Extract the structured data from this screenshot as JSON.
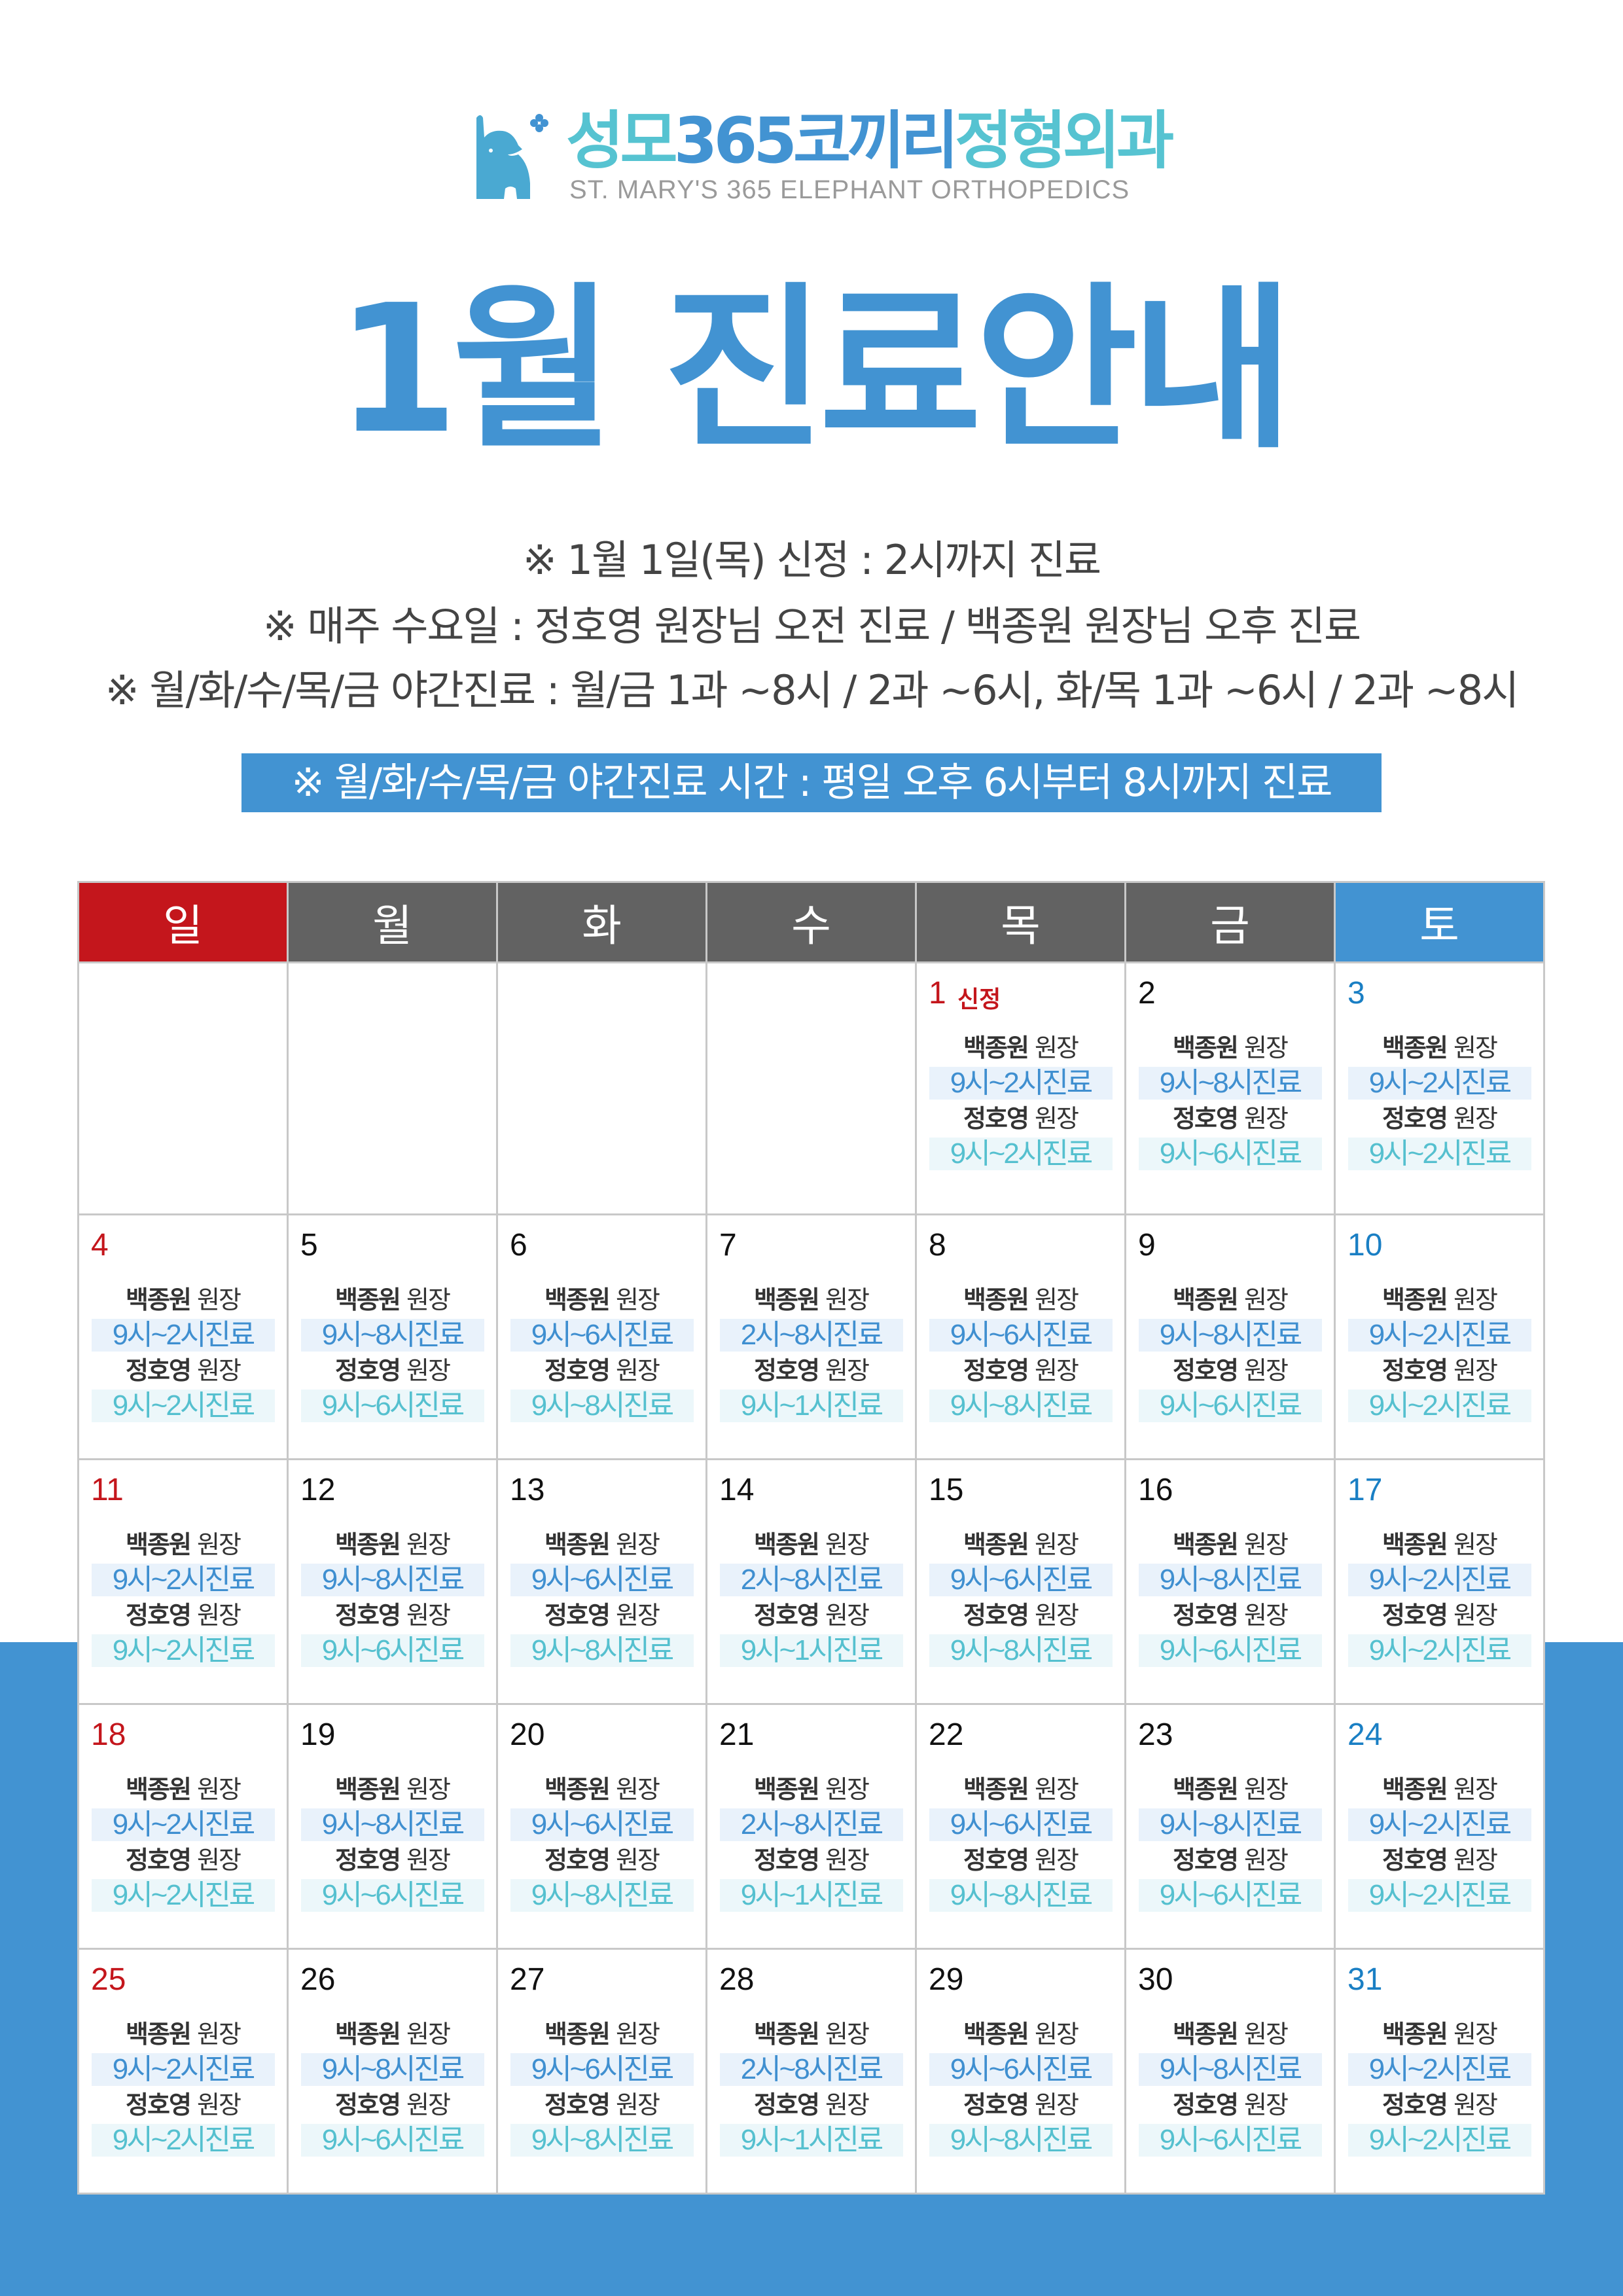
{
  "logo": {
    "name_ko_1": "성모",
    "name_ko_2": "365코끼리",
    "name_ko_3": "정형외과",
    "name_en": "ST. MARY'S 365 ELEPHANT ORTHOPEDICS"
  },
  "title": "1월 진료안내",
  "notes": [
    "※ 1월 1일(목) 신정 : 2시까지 진료",
    "※ 매주 수요일 : 정호영 원장님 오전 진료 / 백종원 원장님 오후 진료",
    "※ 월/화/수/목/금 야간진료 : 월/금 1과 ~8시 / 2과 ~6시,  화/목 1과 ~6시 / 2과 ~8시"
  ],
  "banner": "※ 월/화/수/목/금 야간진료 시간 : 평일 오후 6시부터 8시까지 진료",
  "colors": {
    "accent": "#4293d2",
    "sunday": "#c4161c",
    "header_gray": "#626262",
    "teal": "#56c3d1"
  },
  "calendar": {
    "weekdays": [
      "일",
      "월",
      "화",
      "수",
      "목",
      "금",
      "토"
    ],
    "doctor_suffix": "원장",
    "weeks": [
      [
        null,
        null,
        null,
        null,
        {
          "day": "1",
          "label": "신정",
          "docs": [
            [
              "백종원",
              "9시~2시진료"
            ],
            [
              "정호영",
              "9시~2시진료"
            ]
          ]
        },
        {
          "day": "2",
          "docs": [
            [
              "백종원",
              "9시~8시진료"
            ],
            [
              "정호영",
              "9시~6시진료"
            ]
          ]
        },
        {
          "day": "3",
          "docs": [
            [
              "백종원",
              "9시~2시진료"
            ],
            [
              "정호영",
              "9시~2시진료"
            ]
          ]
        }
      ],
      [
        {
          "day": "4",
          "docs": [
            [
              "백종원",
              "9시~2시진료"
            ],
            [
              "정호영",
              "9시~2시진료"
            ]
          ]
        },
        {
          "day": "5",
          "docs": [
            [
              "백종원",
              "9시~8시진료"
            ],
            [
              "정호영",
              "9시~6시진료"
            ]
          ]
        },
        {
          "day": "6",
          "docs": [
            [
              "백종원",
              "9시~6시진료"
            ],
            [
              "정호영",
              "9시~8시진료"
            ]
          ]
        },
        {
          "day": "7",
          "docs": [
            [
              "백종원",
              "2시~8시진료"
            ],
            [
              "정호영",
              "9시~1시진료"
            ]
          ]
        },
        {
          "day": "8",
          "docs": [
            [
              "백종원",
              "9시~6시진료"
            ],
            [
              "정호영",
              "9시~8시진료"
            ]
          ]
        },
        {
          "day": "9",
          "docs": [
            [
              "백종원",
              "9시~8시진료"
            ],
            [
              "정호영",
              "9시~6시진료"
            ]
          ]
        },
        {
          "day": "10",
          "docs": [
            [
              "백종원",
              "9시~2시진료"
            ],
            [
              "정호영",
              "9시~2시진료"
            ]
          ]
        }
      ],
      [
        {
          "day": "11",
          "docs": [
            [
              "백종원",
              "9시~2시진료"
            ],
            [
              "정호영",
              "9시~2시진료"
            ]
          ]
        },
        {
          "day": "12",
          "docs": [
            [
              "백종원",
              "9시~8시진료"
            ],
            [
              "정호영",
              "9시~6시진료"
            ]
          ]
        },
        {
          "day": "13",
          "docs": [
            [
              "백종원",
              "9시~6시진료"
            ],
            [
              "정호영",
              "9시~8시진료"
            ]
          ]
        },
        {
          "day": "14",
          "docs": [
            [
              "백종원",
              "2시~8시진료"
            ],
            [
              "정호영",
              "9시~1시진료"
            ]
          ]
        },
        {
          "day": "15",
          "docs": [
            [
              "백종원",
              "9시~6시진료"
            ],
            [
              "정호영",
              "9시~8시진료"
            ]
          ]
        },
        {
          "day": "16",
          "docs": [
            [
              "백종원",
              "9시~8시진료"
            ],
            [
              "정호영",
              "9시~6시진료"
            ]
          ]
        },
        {
          "day": "17",
          "docs": [
            [
              "백종원",
              "9시~2시진료"
            ],
            [
              "정호영",
              "9시~2시진료"
            ]
          ]
        }
      ],
      [
        {
          "day": "18",
          "docs": [
            [
              "백종원",
              "9시~2시진료"
            ],
            [
              "정호영",
              "9시~2시진료"
            ]
          ]
        },
        {
          "day": "19",
          "docs": [
            [
              "백종원",
              "9시~8시진료"
            ],
            [
              "정호영",
              "9시~6시진료"
            ]
          ]
        },
        {
          "day": "20",
          "docs": [
            [
              "백종원",
              "9시~6시진료"
            ],
            [
              "정호영",
              "9시~8시진료"
            ]
          ]
        },
        {
          "day": "21",
          "docs": [
            [
              "백종원",
              "2시~8시진료"
            ],
            [
              "정호영",
              "9시~1시진료"
            ]
          ]
        },
        {
          "day": "22",
          "docs": [
            [
              "백종원",
              "9시~6시진료"
            ],
            [
              "정호영",
              "9시~8시진료"
            ]
          ]
        },
        {
          "day": "23",
          "docs": [
            [
              "백종원",
              "9시~8시진료"
            ],
            [
              "정호영",
              "9시~6시진료"
            ]
          ]
        },
        {
          "day": "24",
          "docs": [
            [
              "백종원",
              "9시~2시진료"
            ],
            [
              "정호영",
              "9시~2시진료"
            ]
          ]
        }
      ],
      [
        {
          "day": "25",
          "docs": [
            [
              "백종원",
              "9시~2시진료"
            ],
            [
              "정호영",
              "9시~2시진료"
            ]
          ]
        },
        {
          "day": "26",
          "docs": [
            [
              "백종원",
              "9시~8시진료"
            ],
            [
              "정호영",
              "9시~6시진료"
            ]
          ]
        },
        {
          "day": "27",
          "docs": [
            [
              "백종원",
              "9시~6시진료"
            ],
            [
              "정호영",
              "9시~8시진료"
            ]
          ]
        },
        {
          "day": "28",
          "docs": [
            [
              "백종원",
              "2시~8시진료"
            ],
            [
              "정호영",
              "9시~1시진료"
            ]
          ]
        },
        {
          "day": "29",
          "docs": [
            [
              "백종원",
              "9시~6시진료"
            ],
            [
              "정호영",
              "9시~8시진료"
            ]
          ]
        },
        {
          "day": "30",
          "docs": [
            [
              "백종원",
              "9시~8시진료"
            ],
            [
              "정호영",
              "9시~6시진료"
            ]
          ]
        },
        {
          "day": "31",
          "docs": [
            [
              "백종원",
              "9시~2시진료"
            ],
            [
              "정호영",
              "9시~2시진료"
            ]
          ]
        }
      ]
    ]
  }
}
